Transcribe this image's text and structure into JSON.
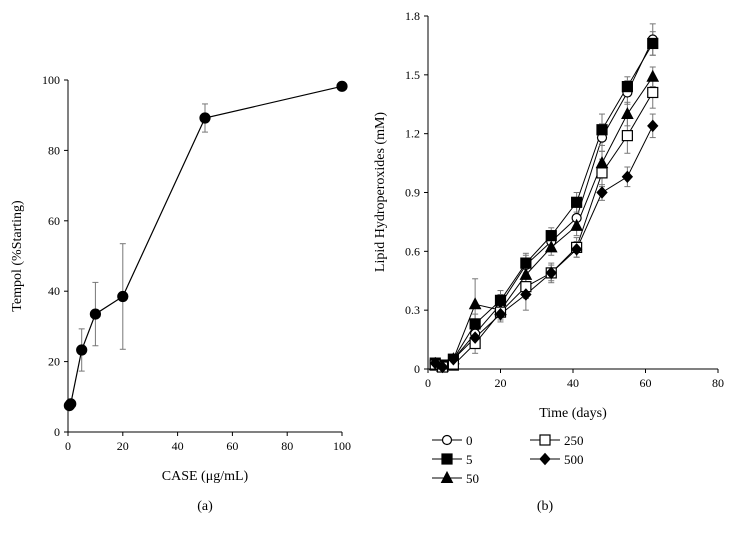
{
  "chart_data": [
    {
      "type": "scatter",
      "panel_label": "(a)",
      "title": "",
      "xlabel": "CASE (μg/mL)",
      "ylabel": "Tempol (%Starting)",
      "xlim": [
        0,
        100
      ],
      "ylim": [
        0,
        100
      ],
      "xticks": [
        "0",
        "20",
        "40",
        "60",
        "80",
        "100"
      ],
      "yticks": [
        "0",
        "20",
        "40",
        "60",
        "80",
        "100"
      ],
      "grid": false,
      "series": [
        {
          "name": "Tempol",
          "marker": "filled-circle",
          "connected": true,
          "x": [
            0.5,
            1,
            5,
            10,
            20,
            50,
            100
          ],
          "y": [
            7.5,
            8,
            23.3,
            33.5,
            38.5,
            89.2,
            98.2
          ],
          "error": [
            0,
            0,
            6,
            9,
            15,
            4,
            0
          ]
        }
      ]
    },
    {
      "type": "line",
      "panel_label": "(b)",
      "title": "",
      "xlabel": "Time (days)",
      "ylabel": "Lipid Hydroperoxides (mM)",
      "xlim": [
        0,
        80
      ],
      "ylim": [
        0,
        1.8
      ],
      "xticks": [
        "0",
        "20",
        "40",
        "60",
        "80"
      ],
      "yticks": [
        "0",
        "0.3",
        "0.6",
        "0.9",
        "1.2",
        "1.5",
        "1.8"
      ],
      "grid": false,
      "legend_position": "bottom",
      "x": [
        2,
        4,
        7,
        13,
        20,
        27,
        34,
        41,
        48,
        55,
        62
      ],
      "series": [
        {
          "name": "0",
          "marker": "open-circle",
          "values": [
            0.03,
            0.02,
            0.05,
            0.18,
            0.33,
            0.53,
            0.65,
            0.77,
            1.18,
            1.41,
            1.68
          ],
          "error": [
            0,
            0,
            0,
            0.04,
            0.05,
            0.05,
            0.05,
            0.06,
            0.07,
            0.06,
            0.08
          ]
        },
        {
          "name": "5",
          "marker": "filled-square",
          "values": [
            0.03,
            0.02,
            0.05,
            0.23,
            0.35,
            0.54,
            0.68,
            0.85,
            1.22,
            1.44,
            1.66
          ],
          "error": [
            0,
            0,
            0,
            0.05,
            0.05,
            0.05,
            0.04,
            0.05,
            0.08,
            0.05,
            0.06
          ]
        },
        {
          "name": "50",
          "marker": "filled-triangle",
          "values": [
            0.02,
            0.01,
            0.05,
            0.33,
            0.3,
            0.48,
            0.62,
            0.73,
            1.05,
            1.3,
            1.49
          ],
          "error": [
            0,
            0,
            0,
            0.13,
            0.04,
            0.05,
            0.04,
            0.05,
            0.06,
            0.06,
            0.05
          ]
        },
        {
          "name": "250",
          "marker": "open-square",
          "values": [
            0.02,
            0.01,
            0.02,
            0.13,
            0.29,
            0.42,
            0.49,
            0.62,
            1.0,
            1.19,
            1.41
          ],
          "error": [
            0,
            0,
            0,
            0.05,
            0.04,
            0.06,
            0.04,
            0.05,
            0.07,
            0.09,
            0.08
          ]
        },
        {
          "name": "500",
          "marker": "filled-diamond",
          "values": [
            0.03,
            0.01,
            0.05,
            0.16,
            0.28,
            0.38,
            0.49,
            0.61,
            0.9,
            0.98,
            1.24
          ],
          "error": [
            0,
            0,
            0,
            0.04,
            0.04,
            0.08,
            0.05,
            0.04,
            0.04,
            0.05,
            0.06
          ]
        }
      ],
      "legend": [
        "0",
        "250",
        "5",
        "500",
        "50"
      ]
    }
  ]
}
